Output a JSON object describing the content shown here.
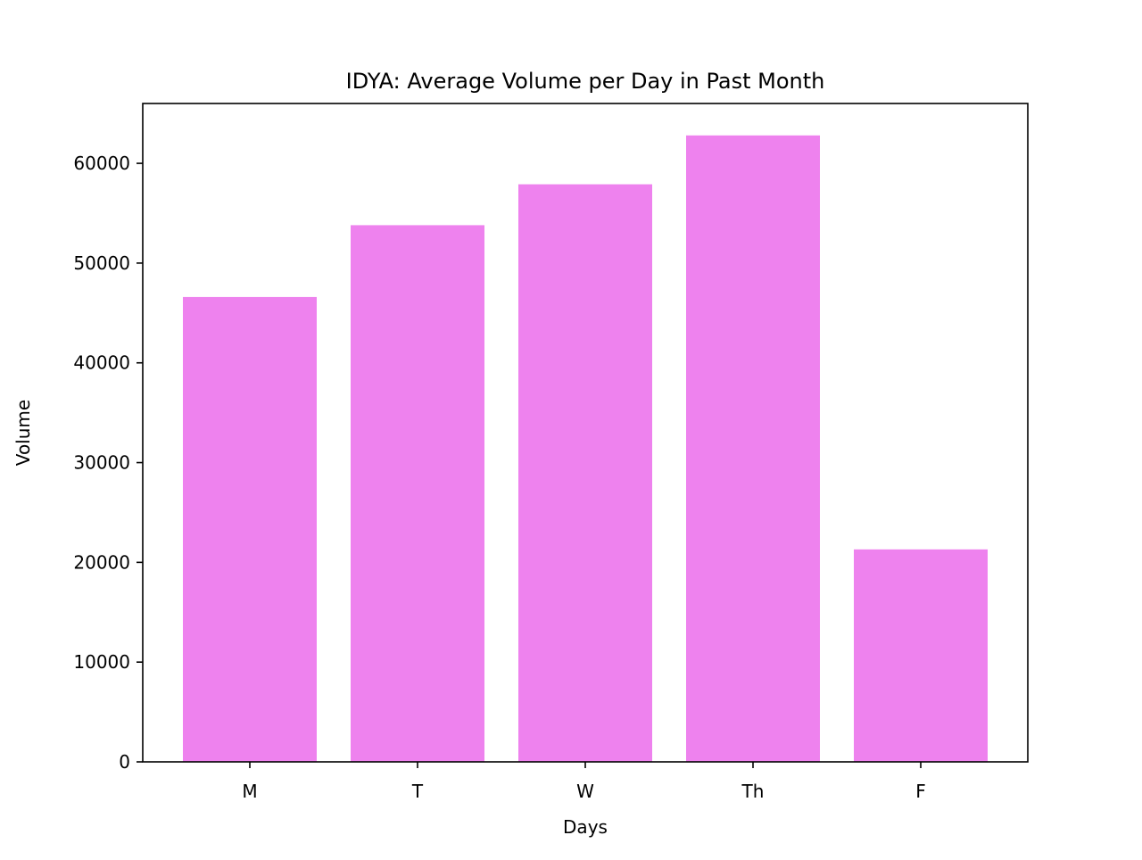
{
  "chart_data": {
    "type": "bar",
    "title": "IDYA: Average Volume per Day in Past Month",
    "xlabel": "Days",
    "ylabel": "Volume",
    "categories": [
      "M",
      "T",
      "W",
      "Th",
      "F"
    ],
    "values": [
      46600,
      53800,
      57900,
      62800,
      21300
    ],
    "ylim": [
      0,
      66000
    ],
    "yticks": [
      0,
      10000,
      20000,
      30000,
      40000,
      50000,
      60000
    ],
    "ytick_labels": [
      "0",
      "10000",
      "20000",
      "30000",
      "40000",
      "50000",
      "60000"
    ],
    "grid": false,
    "legend": "none",
    "bar_color": "#EE82EE"
  }
}
